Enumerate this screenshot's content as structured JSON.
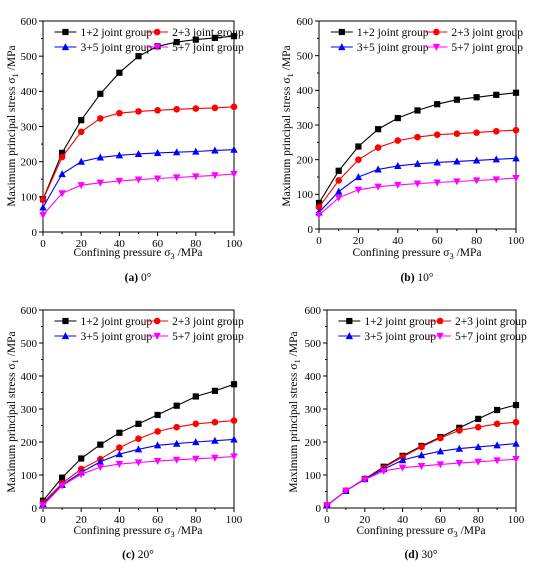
{
  "panels": [
    {
      "caption_letter": "(a)",
      "caption_text": " 0°",
      "ylabel_main": "Maximum principal stress σ",
      "ylabel_sub": "1",
      "ylabel_unit": " /MPa",
      "xlabel_main": "Confining pressure σ",
      "xlabel_sub": "3",
      "xlabel_unit": " /MPa"
    },
    {
      "caption_letter": "(b)",
      "caption_text": " 10°",
      "ylabel_main": "Maximum principal stress σ",
      "ylabel_sub": "1",
      "ylabel_unit": " /MPa",
      "xlabel_main": "Confining pressure σ",
      "xlabel_sub": "3",
      "xlabel_unit": " /MPa"
    },
    {
      "caption_letter": "(c)",
      "caption_text": " 20°",
      "ylabel_main": "Maximum principal stress σ",
      "ylabel_sub": "1",
      "ylabel_unit": " /MPa",
      "xlabel_main": "Confining pressure σ",
      "xlabel_sub": "3",
      "xlabel_unit": " /MPa"
    },
    {
      "caption_letter": "(d)",
      "caption_text": " 30°",
      "ylabel_main": "Maximum principal stress σ",
      "ylabel_sub": "1",
      "ylabel_unit": " /MPa",
      "xlabel_main": "Confining pressure σ",
      "xlabel_sub": "3",
      "xlabel_unit": " /MPa"
    }
  ],
  "chart_data": [
    {
      "type": "line",
      "xlim": [
        0,
        100
      ],
      "ylim": [
        0,
        600
      ],
      "xticks": [
        0,
        20,
        40,
        60,
        80,
        100
      ],
      "yticks": [
        0,
        100,
        200,
        300,
        400,
        500,
        600
      ],
      "legend_placement": "top",
      "x": [
        0,
        10,
        20,
        30,
        40,
        50,
        60,
        70,
        80,
        90,
        100
      ],
      "series": [
        {
          "name": "1+2 joint group",
          "color": "#000000",
          "marker": "square",
          "values": [
            93,
            225,
            318,
            393,
            453,
            500,
            528,
            540,
            547,
            552,
            557
          ]
        },
        {
          "name": "2+3 joint group",
          "color": "#ff0000",
          "marker": "circle",
          "values": [
            92,
            213,
            285,
            323,
            338,
            343,
            346,
            349,
            351,
            353,
            356
          ]
        },
        {
          "name": "3+5 joint group",
          "color": "#0000ff",
          "marker": "triangle-up",
          "values": [
            70,
            165,
            200,
            212,
            218,
            222,
            225,
            227,
            229,
            232,
            234
          ]
        },
        {
          "name": "5+7 joint group",
          "color": "#ff00ff",
          "marker": "triangle-down",
          "values": [
            48,
            110,
            133,
            140,
            145,
            149,
            152,
            155,
            158,
            161,
            165
          ]
        }
      ]
    },
    {
      "type": "line",
      "xlim": [
        0,
        100
      ],
      "ylim": [
        0,
        600
      ],
      "xticks": [
        0,
        20,
        40,
        60,
        80,
        100
      ],
      "yticks": [
        0,
        100,
        200,
        300,
        400,
        500,
        600
      ],
      "legend_placement": "top",
      "x": [
        0,
        10,
        20,
        30,
        40,
        50,
        60,
        70,
        80,
        90,
        100
      ],
      "series": [
        {
          "name": "1+2 joint group",
          "color": "#000000",
          "marker": "square",
          "values": [
            75,
            168,
            238,
            288,
            320,
            342,
            360,
            373,
            380,
            387,
            393
          ]
        },
        {
          "name": "2+3 joint group",
          "color": "#ff0000",
          "marker": "circle",
          "values": [
            63,
            140,
            200,
            235,
            255,
            265,
            272,
            275,
            278,
            282,
            285
          ]
        },
        {
          "name": "3+5 joint group",
          "color": "#0000ff",
          "marker": "triangle-up",
          "values": [
            48,
            108,
            150,
            172,
            182,
            188,
            192,
            195,
            198,
            201,
            204
          ]
        },
        {
          "name": "5+7 joint group",
          "color": "#ff00ff",
          "marker": "triangle-down",
          "values": [
            40,
            90,
            113,
            122,
            127,
            131,
            134,
            137,
            140,
            143,
            147
          ]
        }
      ]
    },
    {
      "type": "line",
      "xlim": [
        0,
        100
      ],
      "ylim": [
        0,
        600
      ],
      "xticks": [
        0,
        20,
        40,
        60,
        80,
        100
      ],
      "yticks": [
        0,
        100,
        200,
        300,
        400,
        500,
        600
      ],
      "legend_placement": "top",
      "x": [
        0,
        10,
        20,
        30,
        40,
        50,
        60,
        70,
        80,
        90,
        100
      ],
      "series": [
        {
          "name": "1+2 joint group",
          "color": "#000000",
          "marker": "square",
          "values": [
            22,
            92,
            150,
            192,
            228,
            255,
            282,
            310,
            338,
            355,
            375
          ]
        },
        {
          "name": "2+3 joint group",
          "color": "#ff0000",
          "marker": "circle",
          "values": [
            16,
            75,
            118,
            148,
            183,
            210,
            232,
            245,
            255,
            260,
            265
          ]
        },
        {
          "name": "3+5 joint group",
          "color": "#0000ff",
          "marker": "triangle-up",
          "values": [
            12,
            70,
            108,
            140,
            163,
            178,
            190,
            195,
            200,
            204,
            208
          ]
        },
        {
          "name": "5+7 joint group",
          "color": "#ff00ff",
          "marker": "triangle-down",
          "values": [
            8,
            68,
            102,
            124,
            133,
            138,
            142,
            146,
            149,
            152,
            156
          ]
        }
      ]
    },
    {
      "type": "line",
      "xlim": [
        0,
        100
      ],
      "ylim": [
        0,
        600
      ],
      "xticks": [
        0,
        20,
        40,
        60,
        80,
        100
      ],
      "yticks": [
        0,
        100,
        200,
        300,
        400,
        500,
        600
      ],
      "legend_placement": "top",
      "x": [
        0,
        10,
        20,
        30,
        40,
        50,
        60,
        70,
        80,
        90,
        100
      ],
      "series": [
        {
          "name": "1+2 joint group",
          "color": "#000000",
          "marker": "square",
          "values": [
            8,
            52,
            88,
            125,
            158,
            188,
            215,
            243,
            270,
            297,
            312
          ]
        },
        {
          "name": "2+3 joint group",
          "color": "#ff0000",
          "marker": "circle",
          "values": [
            8,
            52,
            88,
            122,
            155,
            185,
            212,
            235,
            245,
            255,
            260
          ]
        },
        {
          "name": "3+5 joint group",
          "color": "#0000ff",
          "marker": "triangle-up",
          "values": [
            8,
            52,
            88,
            118,
            145,
            160,
            172,
            180,
            185,
            190,
            195
          ]
        },
        {
          "name": "5+7 joint group",
          "color": "#ff00ff",
          "marker": "triangle-down",
          "values": [
            8,
            52,
            86,
            112,
            122,
            127,
            132,
            136,
            140,
            144,
            148
          ]
        }
      ]
    }
  ]
}
